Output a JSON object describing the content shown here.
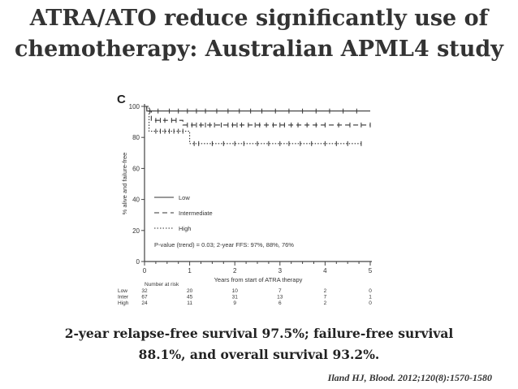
{
  "slide": {
    "title_lines": [
      "ATRA/ATO reduce significantly use of",
      "chemotherapy: Australian APML4 study"
    ],
    "summary_lines": [
      "2-year relapse-free survival 97.5%; failure-free survival",
      "88.1%, and overall survival 93.2%."
    ],
    "citation": "Iland HJ, Blood. 2012;120(8):1570-1580"
  },
  "chart_data": {
    "type": "line",
    "panel_label": "C",
    "xlabel": "Years from start of ATRA therapy",
    "ylabel": "% alive and failure-free",
    "xlim": [
      0,
      5
    ],
    "ylim": [
      0,
      100
    ],
    "x_ticks": [
      "0",
      "1",
      "2",
      "3",
      "4",
      "5"
    ],
    "y_ticks": [
      "0",
      "20",
      "40",
      "60",
      "80",
      "100"
    ],
    "grid": false,
    "legend_position": "inside-lower-center",
    "annotation": "P-value (trend) = 0.03; 2-year FFS: 97%, 88%, 76%",
    "series": [
      {
        "name": "Low",
        "style": "solid",
        "color": "#333333",
        "steps": [
          [
            0,
            100
          ],
          [
            0.05,
            97
          ],
          [
            5,
            97
          ]
        ],
        "censors": [
          0.12,
          0.3,
          0.55,
          0.75,
          0.95,
          1.15,
          1.35,
          1.6,
          1.85,
          2.1,
          2.35,
          2.6,
          2.9,
          3.2,
          3.5,
          3.8,
          4.1,
          4.4,
          4.7
        ]
      },
      {
        "name": "Intermediate",
        "style": "dashed",
        "color": "#333333",
        "steps": [
          [
            0,
            100
          ],
          [
            0.05,
            97
          ],
          [
            0.15,
            91
          ],
          [
            0.8,
            91
          ],
          [
            0.85,
            88
          ],
          [
            5,
            88
          ]
        ],
        "censors": [
          0.25,
          0.35,
          0.45,
          0.6,
          0.7,
          0.95,
          1.05,
          1.15,
          1.25,
          1.35,
          1.45,
          1.55,
          1.7,
          1.85,
          1.95,
          2.05,
          2.15,
          2.3,
          2.45,
          2.55,
          2.7,
          2.85,
          3.0,
          3.1,
          3.25,
          3.4,
          3.6,
          3.8,
          4.0,
          4.3,
          4.55,
          4.8,
          5.0
        ]
      },
      {
        "name": "High",
        "style": "dotted",
        "color": "#333333",
        "steps": [
          [
            0,
            100
          ],
          [
            0.1,
            84
          ],
          [
            0.95,
            84
          ],
          [
            1.0,
            76
          ],
          [
            4.8,
            76
          ]
        ],
        "censors": [
          0.25,
          0.35,
          0.45,
          0.55,
          0.65,
          0.75,
          0.85,
          1.1,
          1.2,
          1.5,
          1.75,
          2.0,
          2.2,
          2.5,
          2.75,
          3.0,
          3.2,
          3.45,
          3.7,
          4.0,
          4.25,
          4.5,
          4.8
        ]
      }
    ],
    "risk_table": {
      "title": "Number at risk",
      "rows": [
        {
          "label": "Low",
          "counts": [
            "32",
            "20",
            "10",
            "7",
            "2",
            "0"
          ]
        },
        {
          "label": "Inter",
          "counts": [
            "67",
            "45",
            "31",
            "13",
            "7",
            "1"
          ]
        },
        {
          "label": "High",
          "counts": [
            "24",
            "11",
            "9",
            "6",
            "2",
            "0"
          ]
        }
      ]
    }
  }
}
